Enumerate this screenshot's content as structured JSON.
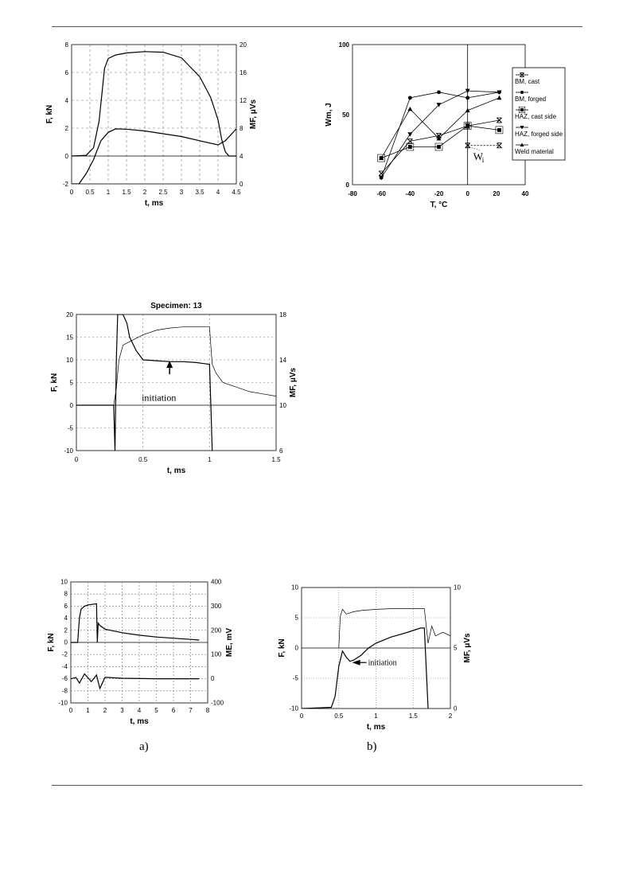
{
  "chart_data": [
    {
      "id": "c1",
      "type": "line",
      "xlabel": "t, ms",
      "ylabel": "F, kN",
      "y2label": "MF, μVs",
      "xlim": [
        0,
        4.5
      ],
      "ylim": [
        -2,
        8
      ],
      "y2lim": [
        0,
        20
      ],
      "xticks": [
        "0",
        "0.5",
        "1",
        "1.5",
        "2",
        "2.5",
        "3",
        "3.5",
        "4",
        "4.5"
      ],
      "yticks": [
        "-2",
        "0",
        "2",
        "4",
        "6",
        "8"
      ],
      "y2ticks": [
        "0",
        "4",
        "8",
        "12",
        "16",
        "20"
      ],
      "grid": true,
      "series": [
        {
          "axis": "y",
          "x": [
            0,
            0.4,
            0.6,
            0.75,
            0.9,
            1.0,
            1.2,
            1.5,
            2.0,
            2.5,
            3.0,
            3.5,
            3.8,
            4.0,
            4.1,
            4.2,
            4.3,
            4.5
          ],
          "y": [
            0,
            0.05,
            0.6,
            2.5,
            6.3,
            7.0,
            7.25,
            7.4,
            7.5,
            7.45,
            7.05,
            5.7,
            4.2,
            2.6,
            1.2,
            0.3,
            0,
            0
          ]
        },
        {
          "axis": "y2",
          "x": [
            0,
            0.2,
            0.4,
            0.6,
            0.8,
            1.0,
            1.2,
            1.5,
            2.0,
            2.5,
            3.0,
            3.5,
            4.0,
            4.2,
            4.5
          ],
          "y": [
            0,
            0,
            1.5,
            3.5,
            6.2,
            7.4,
            7.9,
            7.85,
            7.6,
            7.2,
            6.8,
            6.2,
            5.6,
            6.2,
            7.9
          ]
        }
      ]
    },
    {
      "id": "c2",
      "type": "line",
      "xlabel": "T, °C",
      "ylabel": "Wm, J",
      "xlim": [
        -80,
        40
      ],
      "ylim": [
        0,
        100
      ],
      "xticks": [
        "-80",
        "-60",
        "-40",
        "-20",
        "0",
        "20",
        "40"
      ],
      "yticks": [
        "0",
        "50",
        "100"
      ],
      "legend_position": "right",
      "annotation": "W",
      "annotation_sub": "i",
      "series": [
        {
          "name": "BM, cast",
          "marker": "x",
          "x": [
            -60,
            -40,
            -20,
            0,
            22
          ],
          "y": [
            8,
            31,
            35,
            42,
            46
          ]
        },
        {
          "name": "BM, forged",
          "marker": "circle",
          "x": [
            -60,
            -40,
            -20,
            0,
            22
          ],
          "y": [
            5,
            62,
            66,
            62,
            66
          ]
        },
        {
          "name": "HAZ, cast side",
          "marker": "square",
          "x": [
            -60,
            -40,
            -20,
            0,
            22
          ],
          "y": [
            19,
            27,
            27,
            42,
            39
          ]
        },
        {
          "name": "HAZ, forged side",
          "marker": "tri-down",
          "x": [
            -60,
            -40,
            -20,
            0,
            22
          ],
          "y": [
            5,
            36,
            57,
            67,
            66
          ]
        },
        {
          "name": "Weld material",
          "marker": "tri-up",
          "x": [
            -60,
            -40,
            -20,
            0,
            22
          ],
          "y": [
            19,
            54,
            33,
            53,
            62
          ]
        },
        {
          "name": "",
          "marker": "x",
          "dashed": true,
          "x": [
            0,
            22
          ],
          "y": [
            28,
            28
          ]
        }
      ]
    },
    {
      "id": "c3",
      "type": "line",
      "title": "Specimen: 13",
      "xlabel": "t, ms",
      "ylabel": "F, kN",
      "y2label": "MF, μVs",
      "xlim": [
        0,
        1.5
      ],
      "ylim": [
        -10,
        20
      ],
      "y2lim": [
        6,
        18
      ],
      "xticks": [
        "0",
        "0.5",
        "1",
        "1.5"
      ],
      "yticks": [
        "-10",
        "-5",
        "0",
        "5",
        "10",
        "15",
        "20"
      ],
      "y2ticks": [
        "6",
        "10",
        "14",
        "18"
      ],
      "annotation": "initiation",
      "grid": true,
      "series": [
        {
          "axis": "y",
          "x": [
            0,
            0.28,
            0.29,
            0.3,
            0.31,
            0.32,
            0.35,
            0.38,
            0.4,
            0.45,
            0.5,
            0.6,
            0.7,
            0.8,
            0.9,
            1.0,
            1.01,
            1.02
          ],
          "y": [
            0,
            0,
            -10,
            10,
            20,
            20,
            20,
            18,
            15,
            12,
            10,
            9.8,
            9.6,
            9.6,
            9.4,
            9.0,
            0,
            -10
          ]
        },
        {
          "axis": "y2",
          "x": [
            0,
            0.28,
            0.3,
            0.32,
            0.35,
            0.4,
            0.5,
            0.6,
            0.7,
            0.8,
            0.9,
            1.0,
            1.02,
            1.05,
            1.1,
            1.2,
            1.3,
            1.4,
            1.5
          ],
          "y": [
            10,
            10,
            11.5,
            14,
            15.3,
            15.6,
            16.2,
            16.6,
            16.8,
            16.9,
            16.9,
            16.9,
            13.6,
            12.8,
            12.0,
            11.6,
            11.2,
            11.0,
            10.8
          ]
        }
      ]
    },
    {
      "id": "c4",
      "type": "line",
      "xlabel": "t,   ms",
      "ylabel": "F,  kN",
      "y2label": "ME, mV",
      "xlim": [
        0,
        8
      ],
      "ylim": [
        -10,
        10
      ],
      "y2lim": [
        -100,
        400
      ],
      "xticks": [
        "0",
        "1",
        "2",
        "3",
        "4",
        "5",
        "6",
        "7",
        "8"
      ],
      "yticks": [
        "-10",
        "-8",
        "-6",
        "-4",
        "-2",
        "0",
        "2",
        "4",
        "6",
        "8",
        "10"
      ],
      "y2ticks": [
        "-100",
        "0",
        "100",
        "200",
        "300",
        "400"
      ],
      "grid": true,
      "series": [
        {
          "axis": "y",
          "x": [
            0,
            0.4,
            0.5,
            0.6,
            0.8,
            1.0,
            1.5,
            1.55,
            1.6,
            1.7,
            2.0,
            3.0,
            4.0,
            5.0,
            6.0,
            7.0,
            7.5
          ],
          "y": [
            0,
            0,
            4,
            5.5,
            6.0,
            6.2,
            6.4,
            0,
            3.2,
            2.8,
            2.2,
            1.6,
            1.2,
            0.9,
            0.7,
            0.5,
            0.4
          ]
        },
        {
          "axis": "y2",
          "x": [
            0,
            0.3,
            0.5,
            0.8,
            1.2,
            1.5,
            1.7,
            2.0,
            3.0,
            5.0,
            7.5
          ],
          "y": [
            0,
            5,
            -18,
            20,
            -12,
            15,
            -40,
            6,
            2,
            0,
            0
          ]
        }
      ]
    },
    {
      "id": "c5",
      "type": "line",
      "xlabel": "t, ms",
      "ylabel": "F, kN",
      "y2label": "MF, μVs",
      "xlim": [
        0,
        2
      ],
      "ylim": [
        -10,
        10
      ],
      "y2lim": [
        0,
        10
      ],
      "xticks": [
        "0",
        "0.5",
        "1",
        "1.5",
        "2"
      ],
      "yticks": [
        "-10",
        "-5",
        "0",
        "5",
        "10"
      ],
      "y2ticks": [
        "0",
        "5",
        "10"
      ],
      "annotation": "initiation",
      "grid": true,
      "series": [
        {
          "axis": "y",
          "x": [
            0,
            0.4,
            0.45,
            0.5,
            0.55,
            0.6,
            0.65,
            0.7,
            0.8,
            0.9,
            1.0,
            1.2,
            1.4,
            1.6,
            1.65,
            1.7
          ],
          "y": [
            -10,
            -9.8,
            -8,
            -3,
            -0.5,
            -1.5,
            -2.2,
            -2.0,
            -1.2,
            0,
            0.8,
            1.8,
            2.5,
            3.3,
            3.3,
            -10
          ]
        },
        {
          "axis": "y2",
          "x": [
            0.5,
            0.52,
            0.55,
            0.6,
            0.7,
            0.8,
            1.0,
            1.2,
            1.4,
            1.6,
            1.65,
            1.7,
            1.75,
            1.8,
            1.9,
            2.0
          ],
          "y": [
            5,
            7.6,
            8.2,
            7.8,
            8.0,
            8.1,
            8.2,
            8.25,
            8.25,
            8.25,
            8.25,
            5.4,
            6.8,
            6.0,
            6.3,
            6.0
          ]
        }
      ]
    }
  ],
  "captions": {
    "a": "a)",
    "b": "b)"
  }
}
